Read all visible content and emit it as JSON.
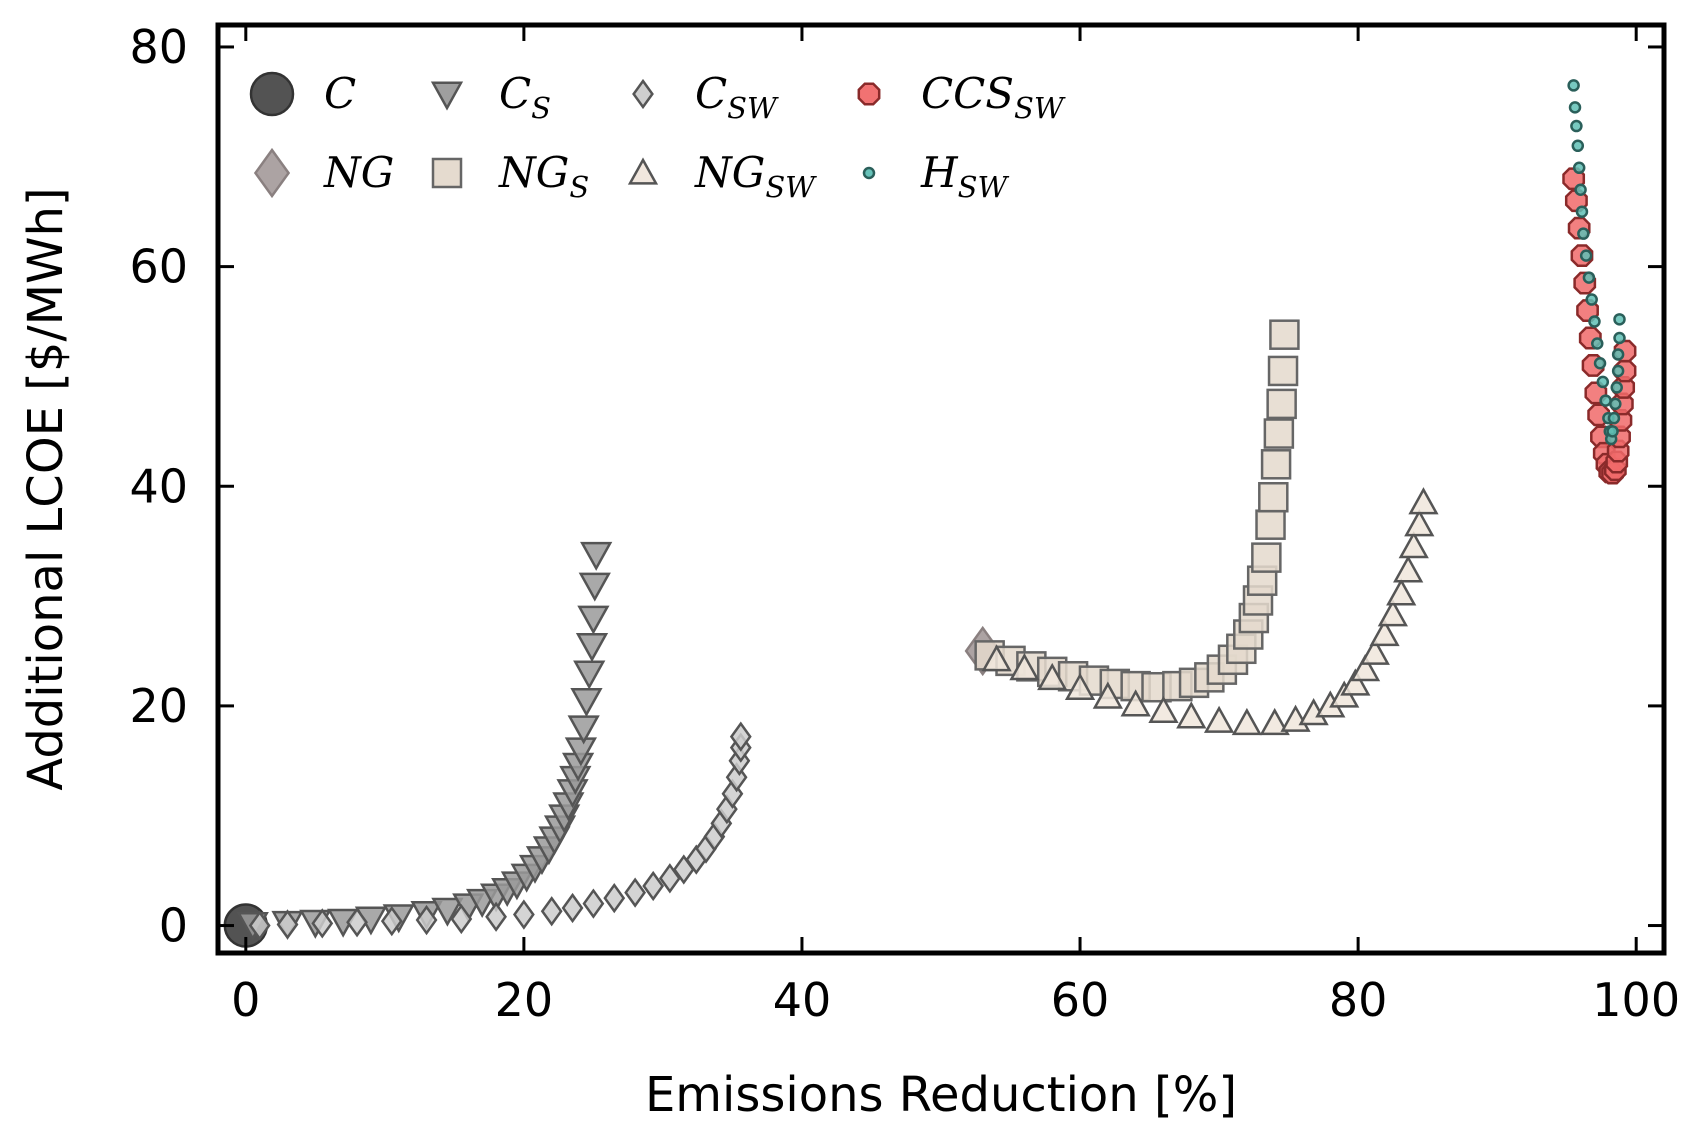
{
  "chart_data": {
    "type": "scatter",
    "title": "",
    "xlabel": "Emissions Reduction [%]",
    "ylabel": "Additional LCOE [$/MWh]",
    "xlim": [
      -2,
      102
    ],
    "ylim": [
      -2.5,
      82
    ],
    "xticks": [
      0,
      20,
      40,
      60,
      80,
      100
    ],
    "yticks": [
      0,
      20,
      40,
      60,
      80
    ],
    "grid": false,
    "legend_position": "top-left",
    "series": [
      {
        "name": "C",
        "base": "C",
        "sub": "",
        "marker": "circle",
        "size": 21,
        "color": "#4a4a4a",
        "stroke": "#333333",
        "points": [
          [
            0.0,
            0.0
          ]
        ]
      },
      {
        "name": "NG",
        "base": "NG",
        "sub": "",
        "marker": "diamond",
        "size": 23,
        "color": "#a89e9e",
        "stroke": "#8a8080",
        "points": [
          [
            53.0,
            25.0
          ]
        ]
      },
      {
        "name": "C_S",
        "base": "C",
        "sub": "S",
        "marker": "triangle-down",
        "size": 14,
        "color": "#9a9a9a",
        "stroke": "#555555",
        "points": [
          [
            0.5,
            0.1
          ],
          [
            3,
            0.2
          ],
          [
            5,
            0.3
          ],
          [
            7,
            0.4
          ],
          [
            9,
            0.6
          ],
          [
            11,
            0.8
          ],
          [
            13,
            1.1
          ],
          [
            14.5,
            1.4
          ],
          [
            16,
            1.8
          ],
          [
            17,
            2.2
          ],
          [
            18,
            2.7
          ],
          [
            18.8,
            3.2
          ],
          [
            19.5,
            3.8
          ],
          [
            20.2,
            4.5
          ],
          [
            20.8,
            5.3
          ],
          [
            21.3,
            6.1
          ],
          [
            21.8,
            7.0
          ],
          [
            22.2,
            7.9
          ],
          [
            22.6,
            8.9
          ],
          [
            22.9,
            9.9
          ],
          [
            23.2,
            11.0
          ],
          [
            23.5,
            12.2
          ],
          [
            23.7,
            13.4
          ],
          [
            23.9,
            14.6
          ],
          [
            24.1,
            16.0
          ],
          [
            24.3,
            18.0
          ],
          [
            24.5,
            20.5
          ],
          [
            24.7,
            23.0
          ],
          [
            24.9,
            25.5
          ],
          [
            25.0,
            28.0
          ],
          [
            25.1,
            31.0
          ],
          [
            25.2,
            33.8
          ]
        ]
      },
      {
        "name": "C_SW",
        "base": "C",
        "sub": "SW",
        "marker": "diamond",
        "size": 13,
        "color": "#cccccc",
        "stroke": "#555555",
        "points": [
          [
            1,
            0.0
          ],
          [
            3,
            0.1
          ],
          [
            5.5,
            0.2
          ],
          [
            8,
            0.3
          ],
          [
            10.5,
            0.4
          ],
          [
            13,
            0.5
          ],
          [
            15.5,
            0.6
          ],
          [
            18,
            0.8
          ],
          [
            20,
            1.0
          ],
          [
            22,
            1.3
          ],
          [
            23.5,
            1.6
          ],
          [
            25,
            2.0
          ],
          [
            26.5,
            2.5
          ],
          [
            28,
            3.0
          ],
          [
            29.3,
            3.6
          ],
          [
            30.5,
            4.3
          ],
          [
            31.5,
            5.1
          ],
          [
            32.4,
            6.0
          ],
          [
            33.1,
            7.0
          ],
          [
            33.7,
            8.1
          ],
          [
            34.2,
            9.3
          ],
          [
            34.6,
            10.6
          ],
          [
            35.0,
            12.0
          ],
          [
            35.3,
            13.5
          ],
          [
            35.5,
            15.0
          ],
          [
            35.6,
            16.2
          ],
          [
            35.6,
            17.2
          ]
        ]
      },
      {
        "name": "NG_S",
        "base": "NG",
        "sub": "S",
        "marker": "square",
        "size": 14,
        "color": "#e4d9cc",
        "stroke": "#666666",
        "points": [
          [
            53.5,
            24.6
          ],
          [
            55,
            24.1
          ],
          [
            56.5,
            23.6
          ],
          [
            58,
            23.1
          ],
          [
            59.5,
            22.7
          ],
          [
            61,
            22.3
          ],
          [
            62.5,
            22.0
          ],
          [
            64,
            21.8
          ],
          [
            65.5,
            21.7
          ],
          [
            67,
            21.8
          ],
          [
            68.2,
            22.1
          ],
          [
            69.3,
            22.6
          ],
          [
            70.2,
            23.3
          ],
          [
            71.0,
            24.2
          ],
          [
            71.6,
            25.2
          ],
          [
            72.1,
            26.5
          ],
          [
            72.5,
            28.0
          ],
          [
            72.8,
            29.6
          ],
          [
            73.1,
            31.4
          ],
          [
            73.4,
            33.5
          ],
          [
            73.7,
            36.5
          ],
          [
            73.9,
            39.0
          ],
          [
            74.1,
            42.0
          ],
          [
            74.3,
            44.8
          ],
          [
            74.5,
            47.5
          ],
          [
            74.6,
            50.5
          ],
          [
            74.7,
            53.8
          ]
        ]
      },
      {
        "name": "NG_SW",
        "base": "NG",
        "sub": "SW",
        "marker": "triangle-up",
        "size": 13,
        "color": "#f0e6dc",
        "stroke": "#555555",
        "points": [
          [
            54,
            24.2
          ],
          [
            56,
            23.4
          ],
          [
            58,
            22.5
          ],
          [
            60,
            21.6
          ],
          [
            62,
            20.8
          ],
          [
            64,
            20.1
          ],
          [
            66,
            19.5
          ],
          [
            68,
            19.0
          ],
          [
            70,
            18.6
          ],
          [
            72,
            18.4
          ],
          [
            74,
            18.4
          ],
          [
            75.5,
            18.7
          ],
          [
            76.8,
            19.3
          ],
          [
            78,
            20.0
          ],
          [
            79,
            20.9
          ],
          [
            79.8,
            22.0
          ],
          [
            80.5,
            23.3
          ],
          [
            81.2,
            24.8
          ],
          [
            81.9,
            26.5
          ],
          [
            82.5,
            28.3
          ],
          [
            83.1,
            30.2
          ],
          [
            83.6,
            32.3
          ],
          [
            84.0,
            34.5
          ],
          [
            84.4,
            36.5
          ],
          [
            84.7,
            38.5
          ]
        ]
      },
      {
        "name": "CCS_SW",
        "base": "CCS",
        "sub": "SW",
        "marker": "octagon",
        "size": 11,
        "color": "#f06a6a",
        "stroke": "#8a2a2a",
        "points": [
          [
            95.5,
            68.0
          ],
          [
            95.7,
            66.0
          ],
          [
            95.9,
            63.5
          ],
          [
            96.1,
            61.0
          ],
          [
            96.3,
            58.5
          ],
          [
            96.5,
            56.0
          ],
          [
            96.7,
            53.5
          ],
          [
            96.9,
            51.0
          ],
          [
            97.1,
            48.5
          ],
          [
            97.3,
            46.5
          ],
          [
            97.5,
            44.5
          ],
          [
            97.7,
            43.0
          ],
          [
            97.9,
            42.0
          ],
          [
            98.1,
            41.3
          ],
          [
            98.3,
            41.2
          ],
          [
            98.5,
            41.5
          ],
          [
            98.6,
            42.2
          ],
          [
            98.7,
            43.2
          ],
          [
            98.8,
            44.5
          ],
          [
            98.9,
            46.0
          ],
          [
            99.0,
            47.5
          ],
          [
            99.1,
            49.0
          ],
          [
            99.2,
            50.5
          ],
          [
            99.2,
            52.3
          ]
        ]
      },
      {
        "name": "H_SW",
        "base": "H",
        "sub": "SW",
        "marker": "circle",
        "size": 5,
        "color": "#5fbfb5",
        "stroke": "#2a5f5a",
        "points": [
          [
            95.5,
            76.5
          ],
          [
            95.6,
            74.5
          ],
          [
            95.7,
            72.8
          ],
          [
            95.8,
            71.0
          ],
          [
            95.9,
            69.0
          ],
          [
            96.0,
            67.0
          ],
          [
            96.1,
            65.0
          ],
          [
            96.2,
            63.0
          ],
          [
            96.4,
            61.0
          ],
          [
            96.6,
            59.0
          ],
          [
            96.8,
            57.0
          ],
          [
            97.0,
            55.0
          ],
          [
            97.2,
            53.0
          ],
          [
            97.4,
            51.2
          ],
          [
            97.6,
            49.5
          ],
          [
            97.8,
            47.8
          ],
          [
            98.0,
            46.2
          ],
          [
            98.1,
            45.0
          ],
          [
            98.2,
            44.3
          ],
          [
            98.3,
            45.0
          ],
          [
            98.4,
            46.2
          ],
          [
            98.5,
            47.5
          ],
          [
            98.6,
            49.0
          ],
          [
            98.7,
            50.5
          ],
          [
            98.7,
            52.0
          ],
          [
            98.8,
            53.5
          ],
          [
            98.8,
            55.2
          ]
        ]
      }
    ]
  }
}
